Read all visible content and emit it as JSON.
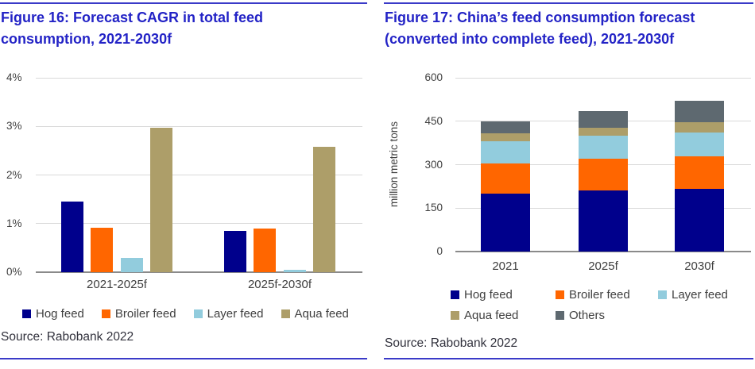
{
  "colors": {
    "title_blue": "#2323C6",
    "rule_blue": "#3A3AC8",
    "grid_gray": "#D9D9D9",
    "axis_gray": "#8A8A8A",
    "tick_text": "#404040",
    "source_text": "#31313C"
  },
  "chart_data": [
    {
      "figure": "Figure 16",
      "type": "bar",
      "title": "Figure 16: Forecast CAGR in total feed consumption, 2021-2030f",
      "title_lines": [
        "Figure 16: Forecast CAGR in total feed",
        "consumption, 2021-2030f"
      ],
      "categories": [
        "2021-2025f",
        "2025f-2030f"
      ],
      "series": [
        {
          "name": "Hog feed",
          "color": "#00008C",
          "values": [
            1.45,
            0.85
          ]
        },
        {
          "name": "Broiler feed",
          "color": "#FF6600",
          "values": [
            0.92,
            0.9
          ]
        },
        {
          "name": "Layer feed",
          "color": "#92CCDD",
          "values": [
            0.29,
            0.05
          ]
        },
        {
          "name": "Aqua feed",
          "color": "#AD9E69",
          "values": [
            2.97,
            2.58
          ]
        }
      ],
      "xlabel": "",
      "ylabel": "",
      "ylim": [
        0,
        4
      ],
      "yticks": [
        "0%",
        "1%",
        "2%",
        "3%",
        "4%"
      ],
      "grid": true,
      "legend_position": "bottom",
      "source": "Source: Rabobank 2022"
    },
    {
      "figure": "Figure 17",
      "type": "stacked-bar",
      "title": "Figure 17: China’s feed consumption forecast (converted into complete feed), 2021-2030f",
      "title_lines": [
        "Figure 17: China’s feed consumption forecast",
        "(converted into complete feed), 2021-2030f"
      ],
      "categories": [
        "2021",
        "2025f",
        "2030f"
      ],
      "series": [
        {
          "name": "Hog feed",
          "color": "#00008C",
          "values": [
            200,
            211,
            216
          ]
        },
        {
          "name": "Broiler feed",
          "color": "#FF6600",
          "values": [
            103,
            110,
            112
          ]
        },
        {
          "name": "Layer feed",
          "color": "#92CCDD",
          "values": [
            77,
            79,
            82
          ]
        },
        {
          "name": "Aqua feed",
          "color": "#AD9E69",
          "values": [
            27,
            28,
            36
          ]
        },
        {
          "name": "Others",
          "color": "#5E6970",
          "values": [
            43,
            57,
            74
          ]
        }
      ],
      "xlabel": "",
      "ylabel": "million metric tons",
      "ylim": [
        0,
        600
      ],
      "yticks": [
        "0",
        "150",
        "300",
        "450",
        "600"
      ],
      "grid": true,
      "legend_position": "bottom",
      "source": "Source: Rabobank 2022"
    }
  ]
}
